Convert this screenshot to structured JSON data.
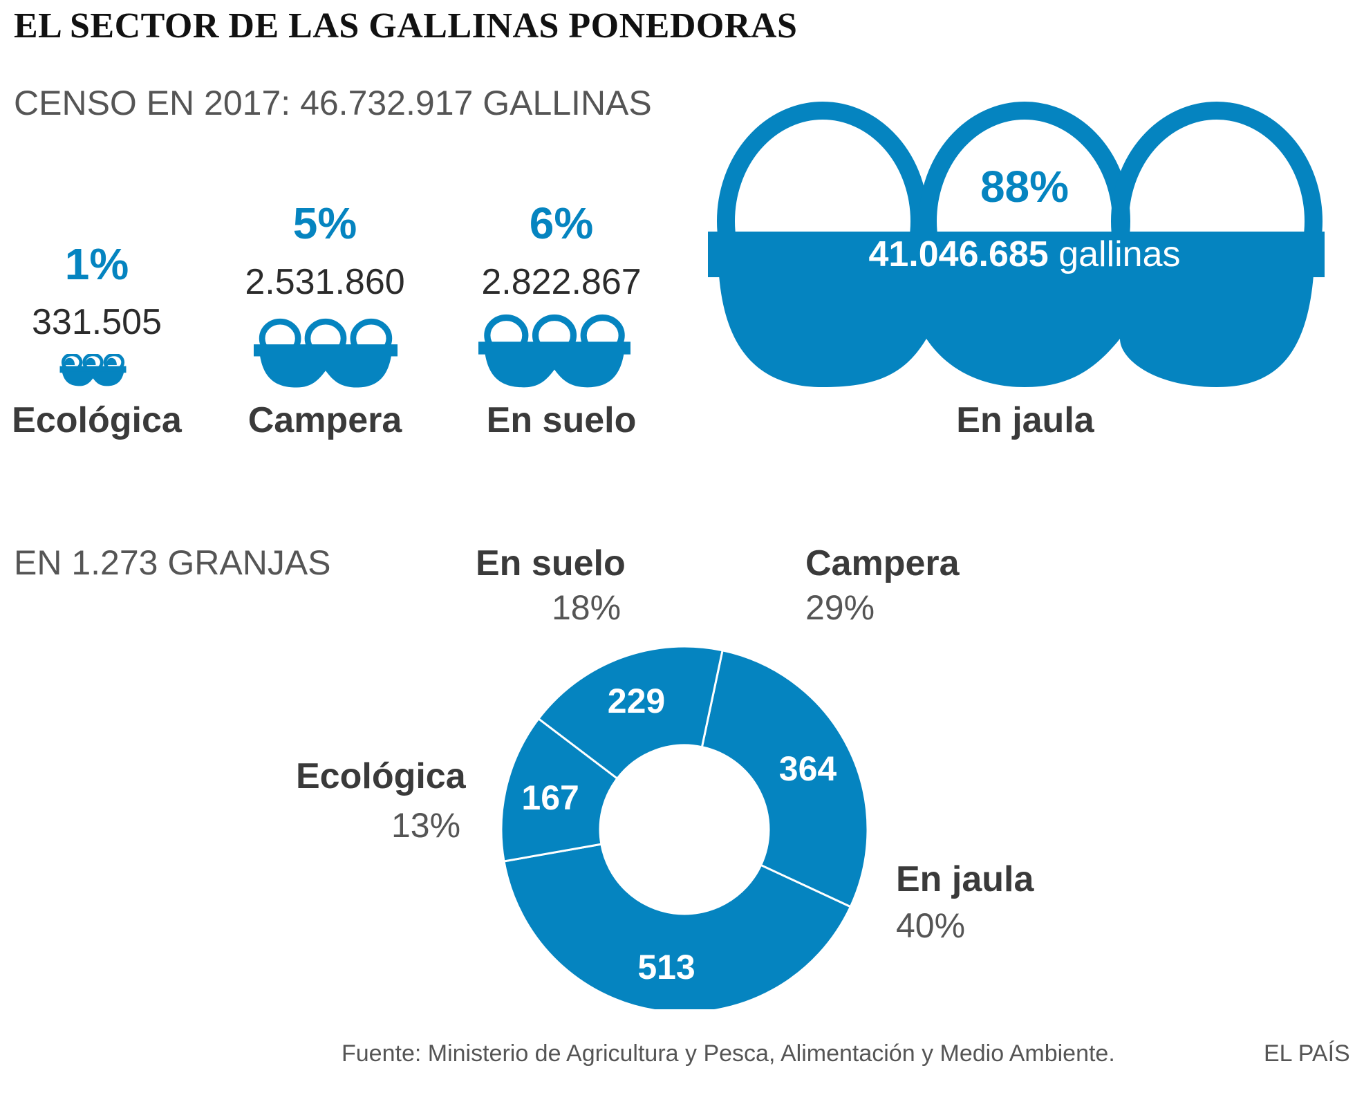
{
  "title": "EL SECTOR DE LAS GALLINAS PONEDORAS",
  "colors": {
    "accent": "#0584c0",
    "text": "#2b2b2b",
    "muted": "#555555",
    "white": "#ffffff"
  },
  "census": {
    "heading": "CENSO EN 2017: 46.732.917 GALLINAS",
    "items": [
      {
        "label": "Ecológica",
        "percent": "1%",
        "count": "331.505",
        "value": 331505,
        "share": 1
      },
      {
        "label": "Campera",
        "percent": "5%",
        "count": "2.531.860",
        "value": 2531860,
        "share": 5
      },
      {
        "label": "En suelo",
        "percent": "6%",
        "count": "2.822.867",
        "value": 2822867,
        "share": 6
      },
      {
        "label": "En jaula",
        "percent": "88%",
        "count": "41.046.685",
        "unit": "gallinas",
        "value": 41046685,
        "share": 88
      }
    ]
  },
  "farms": {
    "heading": "EN 1.273 GRANJAS"
  },
  "chart_data": {
    "type": "pie",
    "title": "EN 1.273 GRANJAS",
    "total": 1273,
    "slices": [
      {
        "label": "Campera",
        "value": 364,
        "percent": "29%"
      },
      {
        "label": "En jaula",
        "value": 513,
        "percent": "40%"
      },
      {
        "label": "Ecológica",
        "value": 167,
        "percent": "13%"
      },
      {
        "label": "En suelo",
        "value": 229,
        "percent": "18%"
      }
    ]
  },
  "footer": {
    "source": "Fuente: Ministerio de Agricultura y Pesca, Alimentación y Medio Ambiente.",
    "brand": "EL PAÍS"
  }
}
